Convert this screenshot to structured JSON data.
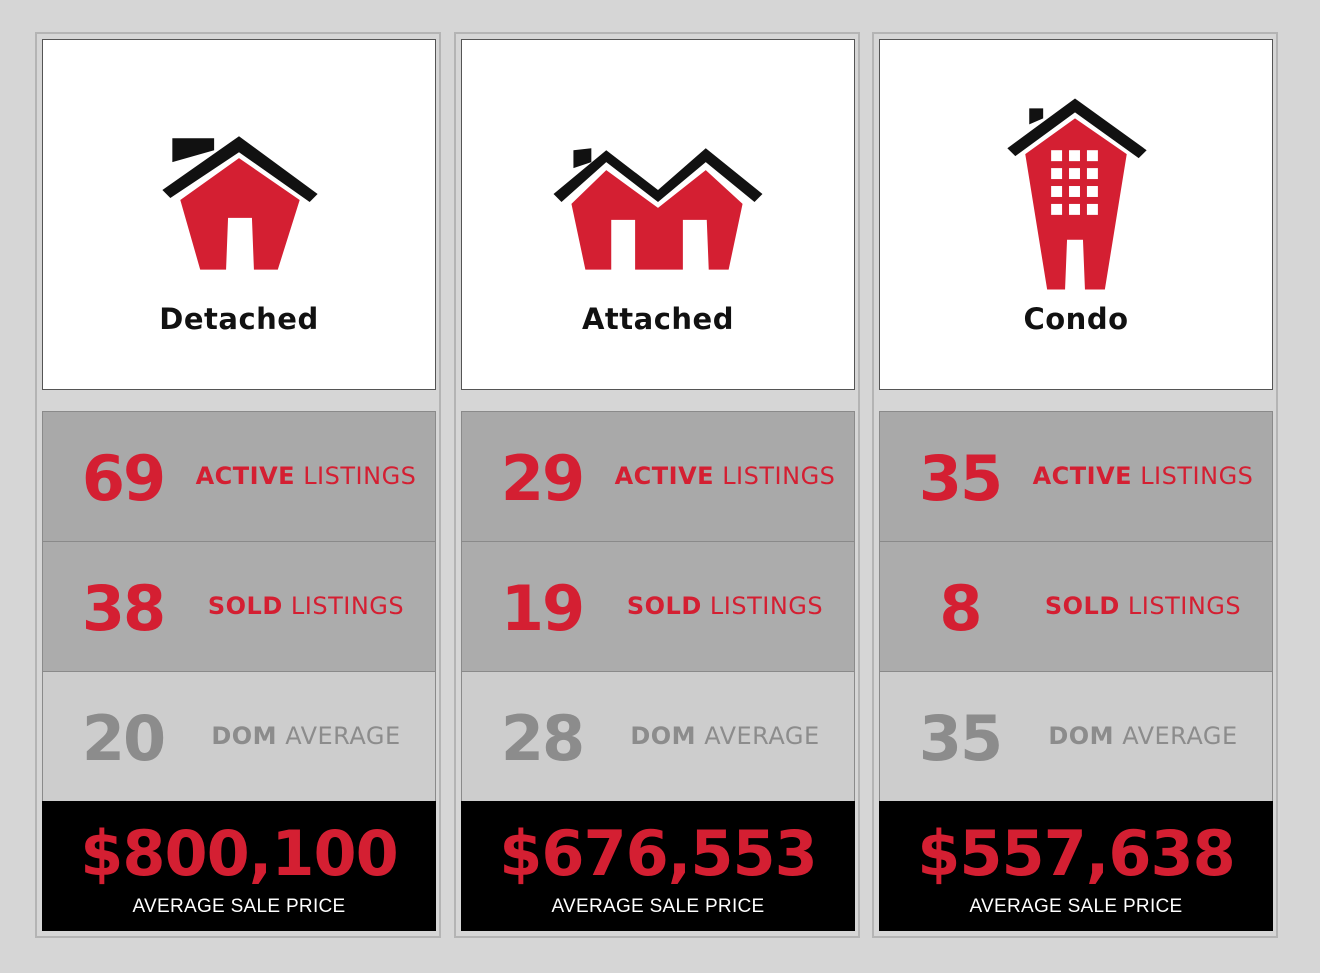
{
  "colors": {
    "accent": "#d41f32",
    "muted": "#8c8c8c",
    "roof": "#111111"
  },
  "cards": [
    {
      "title": "Detached",
      "icon": "detached-house-icon",
      "active": {
        "value": "69",
        "bold": "ACTIVE",
        "rest": "LISTINGS"
      },
      "sold": {
        "value": "38",
        "bold": "SOLD",
        "rest": "LISTINGS"
      },
      "dom": {
        "value": "20",
        "bold": "DOM",
        "rest": "AVERAGE"
      },
      "price": "$800,100",
      "price_label": "AVERAGE SALE PRICE"
    },
    {
      "title": "Attached",
      "icon": "attached-house-icon",
      "active": {
        "value": "29",
        "bold": "ACTIVE",
        "rest": "LISTINGS"
      },
      "sold": {
        "value": "19",
        "bold": "SOLD",
        "rest": "LISTINGS"
      },
      "dom": {
        "value": "28",
        "bold": "DOM",
        "rest": "AVERAGE"
      },
      "price": "$676,553",
      "price_label": "AVERAGE SALE PRICE"
    },
    {
      "title": "Condo",
      "icon": "condo-building-icon",
      "active": {
        "value": "35",
        "bold": "ACTIVE",
        "rest": "LISTINGS"
      },
      "sold": {
        "value": "8",
        "bold": "SOLD",
        "rest": "LISTINGS"
      },
      "dom": {
        "value": "35",
        "bold": "DOM",
        "rest": "AVERAGE"
      },
      "price": "$557,638",
      "price_label": "AVERAGE SALE PRICE"
    }
  ]
}
